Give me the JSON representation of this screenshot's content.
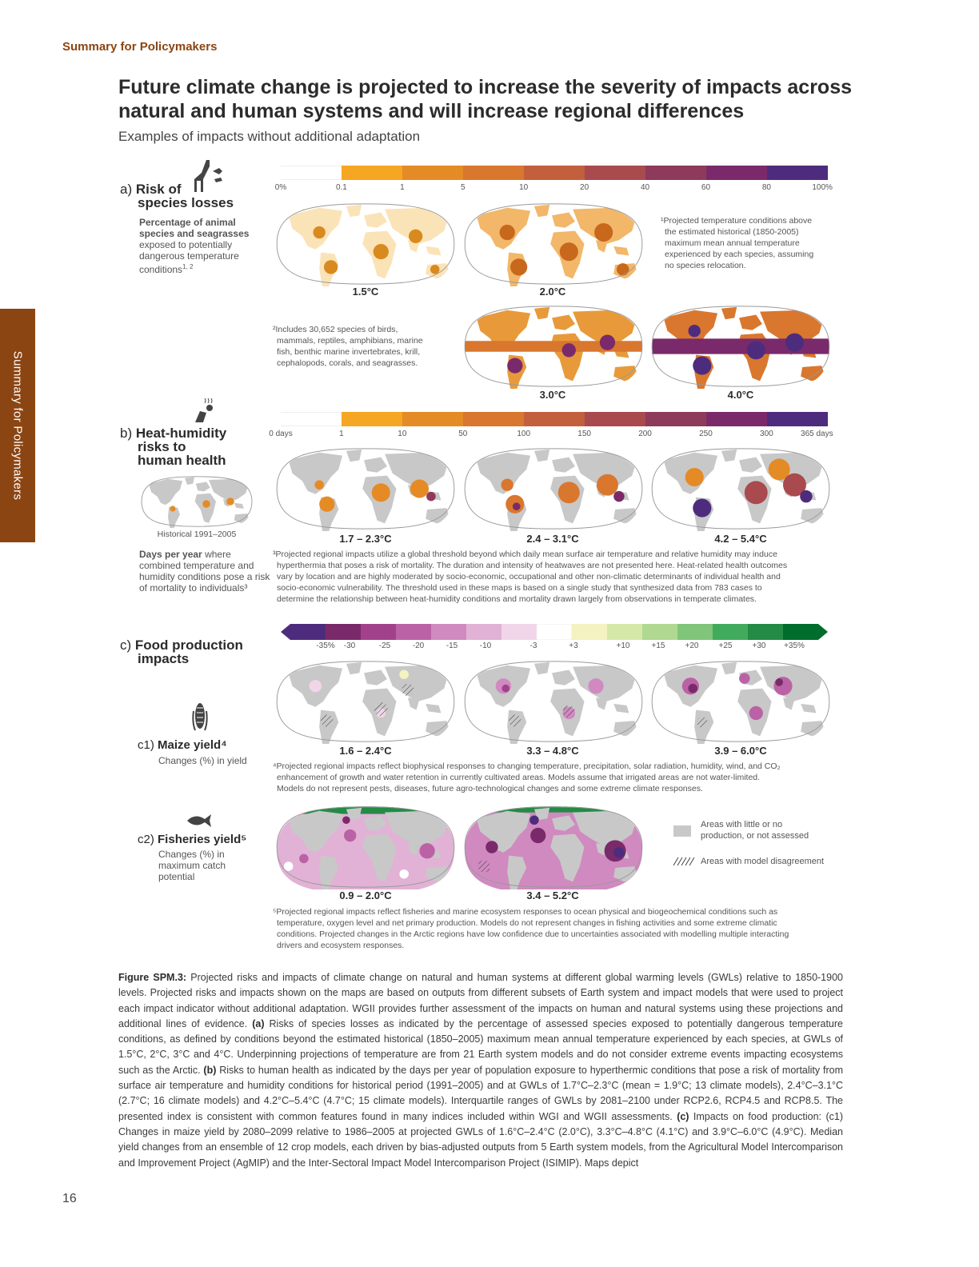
{
  "header": "Summary for Policymakers",
  "sidetab": "Summary for Policymakers",
  "title": "Future climate change is projected to increase the severity of impacts across natural and human systems and will increase regional differences",
  "subtitle": "Examples of impacts without additional adaptation",
  "colors": {
    "brand": "#8b4513",
    "risk_scale": [
      "#ffffff",
      "#f5a623",
      "#e58b26",
      "#d9772e",
      "#c2603e",
      "#a84a4e",
      "#8e3a5a",
      "#7a2a6a",
      "#4e2c7d"
    ],
    "food_scale": [
      "#4e2c7d",
      "#7a2a6a",
      "#a2418b",
      "#bb62a6",
      "#d08ac0",
      "#e1b2d5",
      "#f0d6e8",
      "#ffffff",
      "#f4f2c0",
      "#d6e8a8",
      "#b1d891",
      "#80c57a",
      "#41ab5d",
      "#238b45",
      "#006d2c"
    ],
    "land_gray": "#c8c8c8"
  },
  "section_a": {
    "label_prefix": "a) ",
    "label_bold1": "Risk of",
    "label_bold2": "species losses",
    "desc_bold": "Percentage of animal species and seagrasses",
    "desc_rest": "exposed to potentially dangerous temperature conditions",
    "desc_sup": "1, 2",
    "ticks": [
      "0%",
      "0.1",
      "1",
      "5",
      "10",
      "20",
      "40",
      "60",
      "80",
      "100%"
    ],
    "maps": [
      "1.5°C",
      "2.0°C",
      "3.0°C",
      "4.0°C"
    ],
    "note1": [
      "¹Projected temperature conditions above",
      "the estimated historical (1850-2005)",
      "maximum mean annual temperature",
      "experienced by each species, assuming",
      "no species relocation."
    ],
    "note2": [
      "²Includes 30,652 species of birds,",
      "mammals, reptiles, amphibians, marine",
      "fish, benthic marine invertebrates, krill,",
      "cephalopods, corals, and seagrasses."
    ]
  },
  "section_b": {
    "label_prefix": "b) ",
    "label_bold1": "Heat-humidity",
    "label_bold2": "risks to",
    "label_bold3": "human health",
    "historical": "Historical 1991–2005",
    "desc_bold": "Days per year",
    "desc_rest1": " where",
    "desc_rest2": "combined temperature and",
    "desc_rest3": "humidity conditions pose a risk",
    "desc_rest4": "of mortality to individuals³",
    "ticks": [
      "0 days",
      "1",
      "10",
      "50",
      "100",
      "150",
      "200",
      "250",
      "300",
      "365 days"
    ],
    "maps": [
      "1.7 – 2.3°C",
      "2.4 – 3.1°C",
      "4.2 – 5.4°C"
    ],
    "note3": [
      "³Projected regional impacts utilize a global threshold beyond which daily mean surface air temperature and relative humidity may induce",
      "hyperthermia that poses a risk of mortality. The duration and intensity of heatwaves are not presented here. Heat-related health outcomes",
      "vary by location and are highly moderated by socio-economic, occupational and other non-climatic determinants of individual health and",
      "socio-economic vulnerability. The threshold used in these maps is based on a single study that synthesized data from 783 cases to",
      "determine the relationship between heat-humidity conditions and mortality drawn largely from observations in temperate climates."
    ]
  },
  "section_c": {
    "label_prefix": "c) ",
    "label_bold1": "Food production",
    "label_bold2": "impacts",
    "ticks": [
      "-35%",
      "-30",
      "-25",
      "-20",
      "-15",
      "-10",
      "-3",
      "+3",
      "+10",
      "+15",
      "+20",
      "+25",
      "+30",
      "+35%"
    ],
    "c1_prefix": "c1) ",
    "c1_bold": "Maize yield⁴",
    "c1_desc": "Changes (%) in yield",
    "c1_maps": [
      "1.6 – 2.4°C",
      "3.3 – 4.8°C",
      "3.9 – 6.0°C"
    ],
    "note4": [
      "⁴Projected regional impacts reflect biophysical responses to changing temperature, precipitation, solar radiation, humidity, wind, and CO₂",
      "enhancement of growth and water retention in currently cultivated areas. Models assume that irrigated areas are not water-limited.",
      "Models do not represent pests, diseases, future agro-technological changes and some extreme climate responses."
    ],
    "c2_prefix": "c2) ",
    "c2_bold": "Fisheries yield⁵",
    "c2_desc": [
      "Changes (%) in",
      "maximum catch",
      "potential"
    ],
    "c2_maps": [
      "0.9 – 2.0°C",
      "3.4 – 5.2°C"
    ],
    "legend_gray": [
      "Areas with little or no",
      "production, or not assessed"
    ],
    "legend_hatch": "Areas with model disagreement",
    "note5": [
      "⁵Projected regional impacts reflect fisheries and marine ecosystem responses to ocean physical and biogeochemical conditions such as",
      "temperature, oxygen level and net primary production. Models do not represent changes in fishing activities and some extreme climatic",
      "conditions. Projected changes in the Arctic regions have low confidence due to uncertainties associated with modelling multiple interacting",
      "drivers and ecosystem responses."
    ]
  },
  "caption": {
    "label": "Figure SPM.3:",
    "p1": " Projected risks and impacts of climate change on natural and human systems at different global warming levels (GWLs) relative to 1850-1900 levels. Projected risks and impacts shown on the maps are based on outputs from different subsets of Earth system and impact models that were used to project each impact indicator without additional adaptation. WGII provides further assessment of the impacts on human and natural systems using these projections and additional lines of evidence. ",
    "a": "(a)",
    "p2": " Risks of species losses as indicated by the percentage of assessed species exposed to potentially dangerous temperature conditions, as defined by conditions beyond the estimated historical (1850–2005) maximum mean annual temperature experienced by each species, at GWLs of 1.5°C, 2°C, 3°C and 4°C. Underpinning projections of temperature are from 21 Earth system models and do not consider extreme events impacting ecosystems such as the Arctic. ",
    "b": "(b)",
    "p3": " Risks to human health as indicated by the days per year of population exposure to hyperthermic conditions that pose a risk of mortality from surface air temperature and humidity conditions for historical period (1991–2005) and at GWLs of 1.7°C–2.3°C (mean = 1.9°C; 13 climate models), 2.4°C–3.1°C (2.7°C; 16 climate models) and 4.2°C–5.4°C (4.7°C; 15 climate models). Interquartile ranges of GWLs by 2081–2100 under RCP2.6, RCP4.5 and RCP8.5. The presented index is consistent with common features found in many indices included within WGI and WGII assessments. ",
    "c": "(c)",
    "p4": " Impacts on food production: (c1) Changes in maize yield by 2080–2099 relative to 1986–2005 at projected GWLs of 1.6°C–2.4°C (2.0°C), 3.3°C–4.8°C (4.1°C) and 3.9°C–6.0°C (4.9°C). Median yield changes from an ensemble of 12 crop models, each driven by bias-adjusted outputs from 5 Earth system models, from the Agricultural Model Intercomparison and Improvement Project (AgMIP) and the Inter-Sectoral Impact Model Intercomparison Project (ISIMIP). Maps depict"
  },
  "page_number": "16"
}
